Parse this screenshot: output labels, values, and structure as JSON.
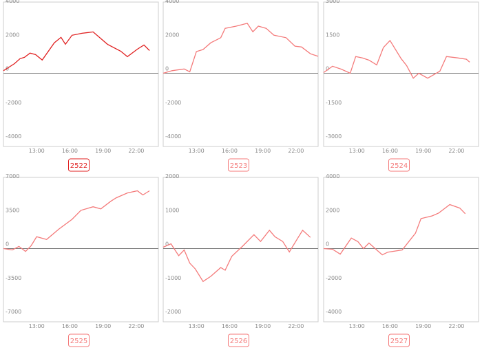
{
  "chart_data": [
    {
      "type": "line",
      "title": "2522",
      "color": "#e02020",
      "xlim": [
        10,
        24
      ],
      "ylim": [
        -4000,
        4000
      ],
      "xticks": [
        {
          "value": 13,
          "label": "13:00"
        },
        {
          "value": 16,
          "label": "16:00"
        },
        {
          "value": 19,
          "label": "19:00"
        },
        {
          "value": 22,
          "label": "22:00"
        }
      ],
      "yticks": [
        -4000,
        -2000,
        0,
        2000,
        4000
      ],
      "x": [
        10,
        11,
        11.5,
        11.9,
        12.4,
        12.9,
        13.5,
        14.6,
        15.2,
        15.6,
        16.2,
        17.1,
        18.1,
        19.4,
        20.6,
        21.2,
        22.1,
        22.7,
        23.2
      ],
      "values": [
        150,
        570,
        860,
        940,
        1190,
        1100,
        780,
        1800,
        2120,
        1710,
        2240,
        2360,
        2440,
        1710,
        1300,
        980,
        1420,
        1670,
        1340
      ]
    },
    {
      "type": "line",
      "title": "2523",
      "color": "#f47a7a",
      "xlim": [
        10,
        24
      ],
      "ylim": [
        -4000,
        4000
      ],
      "xticks": [
        {
          "value": 13,
          "label": "13:00"
        },
        {
          "value": 16,
          "label": "16:00"
        },
        {
          "value": 19,
          "label": "19:00"
        },
        {
          "value": 22,
          "label": "22:00"
        }
      ],
      "yticks": [
        -4000,
        -2000,
        0,
        2000,
        4000
      ],
      "x": [
        10,
        10.8,
        11.9,
        12.4,
        13,
        13.6,
        14.3,
        14.9,
        15.2,
        15.6,
        16.6,
        17.6,
        18.1,
        18.6,
        19.3,
        20,
        21.1,
        21.9,
        22.5,
        23.3,
        24
      ],
      "values": [
        0,
        150,
        250,
        80,
        1280,
        1400,
        1800,
        2000,
        2100,
        2650,
        2780,
        2950,
        2450,
        2780,
        2650,
        2250,
        2100,
        1600,
        1550,
        1150,
        1000
      ]
    },
    {
      "type": "line",
      "title": "2524",
      "color": "#f47a7a",
      "xlim": [
        10,
        24
      ],
      "ylim": [
        -3000,
        3000
      ],
      "xticks": [
        {
          "value": 13,
          "label": "13:00"
        },
        {
          "value": 16,
          "label": "16:00"
        },
        {
          "value": 19,
          "label": "19:00"
        },
        {
          "value": 22,
          "label": "22:00"
        }
      ],
      "yticks": [
        -3000,
        -1500,
        0,
        1500,
        3000
      ],
      "x": [
        10,
        10.8,
        11.6,
        12.4,
        12.9,
        13.5,
        14.1,
        14.8,
        15.4,
        16,
        17,
        17.5,
        18.1,
        18.6,
        19.4,
        20.5,
        21.1,
        22.1,
        22.9,
        23.2
      ],
      "values": [
        30,
        310,
        180,
        0,
        740,
        680,
        580,
        370,
        1140,
        1450,
        650,
        340,
        -220,
        0,
        -220,
        90,
        740,
        680,
        620,
        490
      ]
    },
    {
      "type": "line",
      "title": "2525",
      "color": "#f47a7a",
      "xlim": [
        10,
        24
      ],
      "ylim": [
        -7000,
        7000
      ],
      "xticks": [
        {
          "value": 13,
          "label": "13:00"
        },
        {
          "value": 16,
          "label": "16:00"
        },
        {
          "value": 19,
          "label": "19:00"
        },
        {
          "value": 22,
          "label": "22:00"
        }
      ],
      "yticks": [
        -7000,
        -3500,
        0,
        3500,
        7000
      ],
      "x": [
        10,
        10.8,
        11.4,
        12,
        12.5,
        13,
        13.9,
        15,
        16.2,
        17,
        18.1,
        18.8,
        19.7,
        20.2,
        21.2,
        22.1,
        22.6,
        23.2
      ],
      "values": [
        0,
        -140,
        220,
        -290,
        290,
        1220,
        940,
        2010,
        3020,
        3950,
        4320,
        4100,
        4890,
        5250,
        5750,
        5970,
        5540,
        5970
      ]
    },
    {
      "type": "line",
      "title": "2526",
      "color": "#f47a7a",
      "xlim": [
        10,
        24
      ],
      "ylim": [
        -2000,
        2000
      ],
      "xticks": [
        {
          "value": 13,
          "label": "13:00"
        },
        {
          "value": 16,
          "label": "16:00"
        },
        {
          "value": 19,
          "label": "19:00"
        },
        {
          "value": 22,
          "label": "22:00"
        }
      ],
      "yticks": [
        -2000,
        -1000,
        0,
        1000,
        2000
      ],
      "x": [
        10,
        10.7,
        11.4,
        11.9,
        12.4,
        12.9,
        13.6,
        14.3,
        15.2,
        15.6,
        16.2,
        17.2,
        18.2,
        18.8,
        19.6,
        20.1,
        20.8,
        21.4,
        22.2,
        22.6,
        23.3
      ],
      "values": [
        40,
        140,
        -210,
        -40,
        -430,
        -600,
        -970,
        -820,
        -560,
        -640,
        -230,
        80,
        410,
        210,
        540,
        350,
        210,
        -100,
        330,
        540,
        330
      ]
    },
    {
      "type": "line",
      "title": "2527",
      "color": "#f47a7a",
      "xlim": [
        10,
        24
      ],
      "ylim": [
        -4000,
        4000
      ],
      "xticks": [
        {
          "value": 13,
          "label": "13:00"
        },
        {
          "value": 16,
          "label": "16:00"
        },
        {
          "value": 19,
          "label": "19:00"
        },
        {
          "value": 22,
          "label": "22:00"
        }
      ],
      "yticks": [
        -4000,
        -2000,
        0,
        2000,
        4000
      ],
      "x": [
        10,
        10.8,
        11.5,
        12.5,
        13.1,
        13.6,
        14.1,
        14.8,
        15.3,
        15.8,
        17.1,
        17.9,
        18.3,
        18.8,
        19.8,
        20.4,
        20.9,
        21.4,
        22.3,
        22.8
      ],
      "values": [
        0,
        -40,
        -330,
        620,
        410,
        0,
        330,
        -80,
        -370,
        -210,
        -80,
        580,
        910,
        1770,
        1930,
        2100,
        2350,
        2600,
        2390,
        2060
      ]
    }
  ]
}
